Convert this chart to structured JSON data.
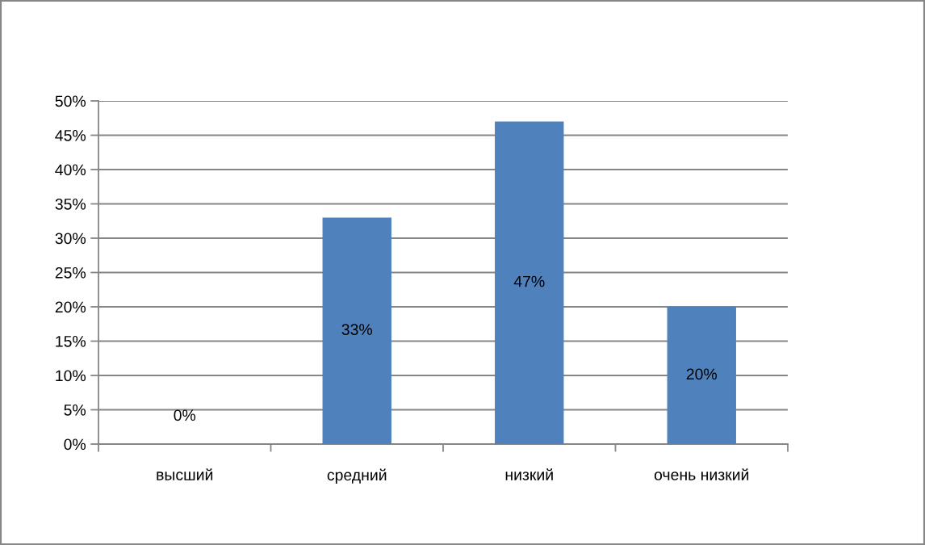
{
  "chart_data": {
    "type": "bar",
    "categories": [
      "высший",
      "средний",
      "низкий",
      "очень низкий"
    ],
    "values": [
      0,
      33,
      47,
      20
    ],
    "color": "#4f81bd",
    "value_labels": [
      "0%",
      "33%",
      "47%",
      "20%"
    ],
    "ylim": [
      0,
      50
    ],
    "yticks": [
      {
        "value": 0,
        "label": "0%"
      },
      {
        "value": 5,
        "label": "5%"
      },
      {
        "value": 10,
        "label": "10%"
      },
      {
        "value": 15,
        "label": "15%"
      },
      {
        "value": 20,
        "label": "20%"
      },
      {
        "value": 25,
        "label": "25%"
      },
      {
        "value": 30,
        "label": "30%"
      },
      {
        "value": 35,
        "label": "35%"
      },
      {
        "value": 40,
        "label": "40%"
      },
      {
        "value": 45,
        "label": "45%"
      },
      {
        "value": 50,
        "label": "50%"
      }
    ],
    "grid": "y",
    "legend": false
  }
}
